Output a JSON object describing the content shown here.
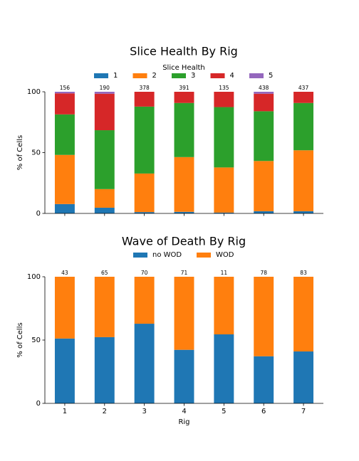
{
  "chart_data": [
    {
      "type": "bar",
      "stacked": true,
      "title": "Slice Health By Rig",
      "ylabel": "% of Cells",
      "xlabel": "",
      "ylim": [
        0,
        100
      ],
      "yticks": [
        0,
        50,
        100
      ],
      "categories": [
        "1",
        "2",
        "3",
        "4",
        "5",
        "6",
        "7"
      ],
      "show_xtick_labels": false,
      "counts": [
        "156",
        "190",
        "378",
        "391",
        "135",
        "438",
        "437"
      ],
      "legend": {
        "title": "Slice Health",
        "placement": "top-center"
      },
      "series": [
        {
          "name": "1",
          "color": "#1f77b4",
          "values": [
            7.7,
            4.7,
            1.1,
            1.3,
            0.7,
            1.8,
            1.8
          ]
        },
        {
          "name": "2",
          "color": "#ff7f0e",
          "values": [
            40.4,
            15.3,
            31.7,
            45.0,
            37.1,
            41.3,
            50.1
          ]
        },
        {
          "name": "3",
          "color": "#2ca02c",
          "values": [
            33.3,
            48.4,
            55.0,
            44.5,
            49.6,
            40.9,
            38.9
          ]
        },
        {
          "name": "4",
          "color": "#d62728",
          "values": [
            17.3,
            30.0,
            12.2,
            9.2,
            12.6,
            14.4,
            9.2
          ]
        },
        {
          "name": "5",
          "color": "#9467bd",
          "values": [
            1.3,
            1.6,
            0.0,
            0.0,
            0.0,
            1.6,
            0.0
          ]
        }
      ]
    },
    {
      "type": "bar",
      "stacked": true,
      "title": "Wave of Death By Rig",
      "ylabel": "% of Cells",
      "xlabel": "Rig",
      "ylim": [
        0,
        100
      ],
      "yticks": [
        0,
        50,
        100
      ],
      "categories": [
        "1",
        "2",
        "3",
        "4",
        "5",
        "6",
        "7"
      ],
      "show_xtick_labels": true,
      "counts": [
        "43",
        "65",
        "70",
        "71",
        "11",
        "78",
        "83"
      ],
      "legend": {
        "title": "",
        "placement": "top-center"
      },
      "series": [
        {
          "name": "no WOD",
          "color": "#1f77b4",
          "values": [
            51.2,
            52.3,
            62.9,
            42.3,
            54.5,
            37.2,
            41.0
          ]
        },
        {
          "name": "WOD",
          "color": "#ff7f0e",
          "values": [
            48.8,
            47.7,
            37.1,
            57.7,
            45.5,
            62.8,
            59.0
          ]
        }
      ]
    }
  ]
}
